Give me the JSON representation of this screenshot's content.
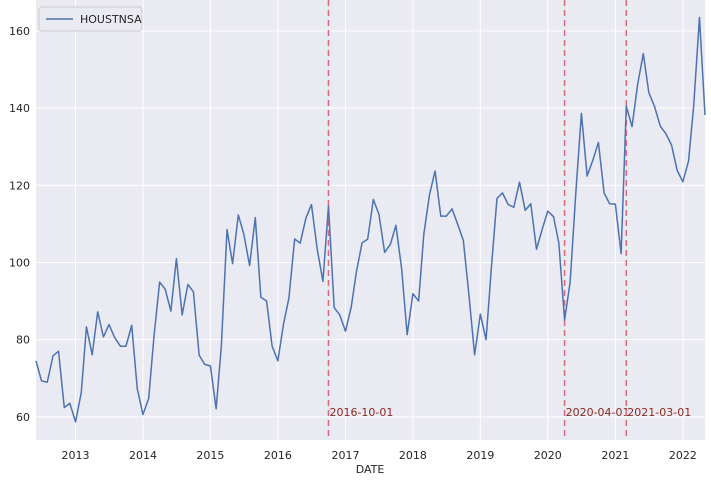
{
  "chart_data": {
    "type": "line",
    "xlabel": "DATE",
    "ylabel": "",
    "title": "",
    "xlim": [
      "2012-06-01",
      "2022-05-01"
    ],
    "ylim": [
      54,
      168
    ],
    "grid": true,
    "legend": {
      "position": "top-left",
      "entries": [
        "HOUSTNSA"
      ]
    },
    "x_ticks": [
      {
        "date": "2013-01-01",
        "label": "2013"
      },
      {
        "date": "2014-01-01",
        "label": "2014"
      },
      {
        "date": "2015-01-01",
        "label": "2015"
      },
      {
        "date": "2016-01-01",
        "label": "2016"
      },
      {
        "date": "2017-01-01",
        "label": "2017"
      },
      {
        "date": "2018-01-01",
        "label": "2018"
      },
      {
        "date": "2019-01-01",
        "label": "2019"
      },
      {
        "date": "2020-01-01",
        "label": "2020"
      },
      {
        "date": "2021-01-01",
        "label": "2021"
      },
      {
        "date": "2022-01-01",
        "label": "2022"
      }
    ],
    "y_ticks": [
      60,
      80,
      100,
      120,
      140,
      160
    ],
    "vlines": [
      {
        "date": "2016-10-01",
        "label": "2016-10-01"
      },
      {
        "date": "2020-04-01",
        "label": "2020-04-01"
      },
      {
        "date": "2021-03-01",
        "label": "2021-03-01"
      }
    ],
    "series": [
      {
        "name": "HOUSTNSA",
        "color": "#4c72b0",
        "start": "2012-06-01",
        "frequency": "monthly",
        "values": [
          74.5,
          69.3,
          69.0,
          75.8,
          77.0,
          62.4,
          63.5,
          58.7,
          66.3,
          83.3,
          76.1,
          87.2,
          80.7,
          83.9,
          80.5,
          78.3,
          78.3,
          83.7,
          67.3,
          60.6,
          64.8,
          80.5,
          94.9,
          93.1,
          87.4,
          101.0,
          86.4,
          94.3,
          92.4,
          76.0,
          73.6,
          73.2,
          62.1,
          78.2,
          108.5,
          99.7,
          112.3,
          107.3,
          99.2,
          111.6,
          91.0,
          90.0,
          78.3,
          74.5,
          84.1,
          90.8,
          106.1,
          105.0,
          111.5,
          115.0,
          103.5,
          95.1,
          114.6,
          88.3,
          86.4,
          82.2,
          88.4,
          97.5,
          105.1,
          106.0,
          116.3,
          112.5,
          102.6,
          104.7,
          109.6,
          98.4,
          81.3,
          91.9,
          90.0,
          107.3,
          117.6,
          123.7,
          112.0,
          112.0,
          113.9,
          109.8,
          105.7,
          91.2,
          76.1,
          86.6,
          80.0,
          98.2,
          116.6,
          118.0,
          115.0,
          114.3,
          120.8,
          113.5,
          115.2,
          103.4,
          108.5,
          113.3,
          111.9,
          105.0,
          85.1,
          94.9,
          118.2,
          138.6,
          122.4,
          126.5,
          131.1,
          118.0,
          115.2,
          115.1,
          102.3,
          140.5,
          135.2,
          146.0,
          154.1,
          144.0,
          140.4,
          135.3,
          133.4,
          130.4,
          123.9,
          120.9,
          126.3,
          140.7,
          163.5,
          138.2
        ]
      }
    ]
  }
}
